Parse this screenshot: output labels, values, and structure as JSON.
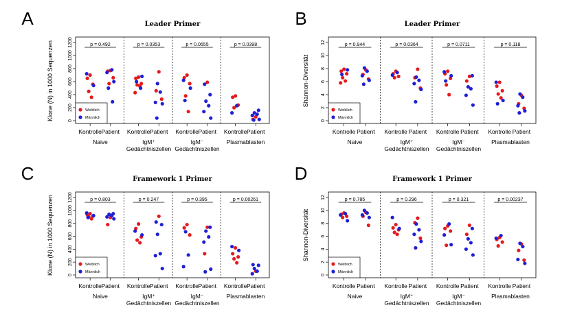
{
  "colors": {
    "female": "#e41a1c",
    "male": "#1f1fd6"
  },
  "category_labels": [
    "Kontrolle",
    "Patient"
  ],
  "group_labels": [
    [
      "Naive"
    ],
    [
      "IgM⁺",
      "Gedächtniszellen"
    ],
    [
      "IgM⁻",
      "Gedächtniszellen"
    ],
    [
      "Plasmablasten"
    ]
  ],
  "legend": {
    "female": "Weiblich",
    "male": "Männlich"
  },
  "chart_data": [
    {
      "type": "scatter",
      "panel": "A",
      "title": "Leader Primer",
      "ylabel": "Klone (N) in 1000 Sequenzen",
      "ylim": [
        0,
        1200
      ],
      "yticks": [
        "0",
        "200",
        "400",
        "600",
        "800",
        "1000",
        "1200"
      ],
      "pvalues": [
        "p = 0.492",
        "p = 0.0353",
        "p = 0.0655",
        "p = 0.0398"
      ],
      "groups": [
        {
          "Kontrolle": {
            "female": [
              700,
              650,
              560,
              450,
              360
            ],
            "male": [
              720,
              540
            ]
          },
          "Patient": {
            "female": [
              770,
              760,
              660,
              570
            ],
            "male": [
              780,
              740,
              600,
              500,
              290
            ]
          }
        },
        {
          "Kontrolle": {
            "female": [
              670,
              650,
              570,
              550,
              530,
              430
            ],
            "male": [
              680,
              600,
              500
            ]
          },
          "Patient": {
            "female": [
              750,
              460,
              330
            ],
            "male": [
              570,
              440,
              280,
              260,
              40
            ]
          }
        },
        {
          "Kontrolle": {
            "female": [
              700,
              660,
              570,
              380,
              140
            ],
            "male": [
              620,
              500,
              310
            ]
          },
          "Patient": {
            "female": [
              590
            ],
            "male": [
              560,
              400,
              300,
              230,
              140,
              40
            ]
          }
        },
        {
          "Kontrolle": {
            "female": [
              380,
              360,
              240,
              200
            ],
            "male": [
              230,
              120
            ]
          },
          "Patient": {
            "female": [
              60,
              20
            ],
            "male": [
              160,
              120,
              100,
              80,
              20,
              10
            ]
          }
        }
      ]
    },
    {
      "type": "scatter",
      "panel": "B",
      "title": "Leader Primer",
      "ylabel": "Shannon-Diversität",
      "ylim": [
        0,
        12
      ],
      "yticks": [
        "0",
        "2",
        "4",
        "6",
        "8",
        "10",
        "12"
      ],
      "pvalues": [
        "p = 0.944",
        "p = 0.0364",
        "p = 0.0711",
        "p = 0.118"
      ],
      "groups": [
        {
          "Kontrolle": {
            "female": [
              7.9,
              7.6,
              7.2,
              6.6,
              6.1,
              5.8
            ],
            "male": [
              7.8,
              7.1
            ]
          },
          "Patient": {
            "female": [
              7.8,
              7.1,
              6.4
            ],
            "male": [
              8.1,
              7.6,
              6.9,
              6.2,
              5.6
            ]
          }
        },
        {
          "Kontrolle": {
            "female": [
              7.6,
              7.2,
              6.8,
              6.6
            ],
            "male": [
              7.4,
              7.0
            ]
          },
          "Patient": {
            "female": [
              7.9,
              6.6,
              5.0
            ],
            "male": [
              6.7,
              6.2,
              5.7,
              4.8,
              2.9
            ]
          }
        },
        {
          "Kontrolle": {
            "female": [
              7.6,
              7.2,
              6.5,
              5.5,
              4.0
            ],
            "male": [
              7.5,
              6.9,
              6.1
            ]
          },
          "Patient": {
            "female": [
              6.8,
              6.1
            ],
            "male": [
              6.9,
              5.2,
              4.9,
              3.9,
              2.4
            ]
          }
        },
        {
          "Kontrolle": {
            "female": [
              5.9,
              5.3,
              4.6,
              4.1,
              3.5
            ],
            "male": [
              5.9,
              3.1,
              2.6
            ]
          },
          "Patient": {
            "female": [
              3.9,
              2.6,
              1.9
            ],
            "male": [
              4.1,
              3.6,
              2.3,
              1.5,
              1.2
            ]
          }
        }
      ]
    },
    {
      "type": "scatter",
      "panel": "C",
      "title": "Framework 1 Primer",
      "ylabel": "Klone (N) in 1000 Sequenzen",
      "ylim": [
        0,
        1200
      ],
      "yticks": [
        "0",
        "200",
        "400",
        "600",
        "800",
        "1000",
        "1200"
      ],
      "pvalues": [
        "p = 0.803",
        "p = 0.247",
        "p = 0.395",
        "p = 0.00261"
      ],
      "groups": [
        {
          "Kontrolle": {
            "female": [
              950,
              930,
              910,
              900,
              870
            ],
            "male": [
              960,
              920,
              890
            ]
          },
          "Patient": {
            "female": [
              890,
              780
            ],
            "male": [
              950,
              940,
              920,
              900,
              870
            ]
          }
        },
        {
          "Kontrolle": {
            "female": [
              790,
              720,
              590,
              540,
              500
            ],
            "male": [
              680,
              620
            ]
          },
          "Patient": {
            "female": [
              910
            ],
            "male": [
              820,
              780,
              630,
              330,
              300,
              100
            ]
          }
        },
        {
          "Kontrolle": {
            "female": [
              780,
              730,
              620
            ],
            "male": [
              670,
              310,
              130
            ]
          },
          "Patient": {
            "female": [
              740,
              330
            ],
            "male": [
              740,
              680,
              590,
              510,
              90,
              50
            ]
          }
        },
        {
          "Kontrolle": {
            "female": [
              420,
              330,
              280,
              250,
              190
            ],
            "male": [
              440,
              380
            ]
          },
          "Patient": {
            "female": [
              60
            ],
            "male": [
              160,
              150,
              100,
              60,
              20
            ]
          }
        }
      ]
    },
    {
      "type": "scatter",
      "panel": "D",
      "title": "Framework 1 Primer",
      "ylabel": "Shannon-Diversität",
      "ylim": [
        0,
        12
      ],
      "yticks": [
        "0",
        "2",
        "4",
        "6",
        "8",
        "10",
        "12"
      ],
      "pvalues": [
        "p = 0.785",
        "p = 0.296",
        "p = 0.321",
        "p = 0.00237"
      ],
      "groups": [
        {
          "Kontrolle": {
            "female": [
              9.6,
              9.4,
              9.1,
              8.9
            ],
            "male": [
              9.5,
              9.3,
              8.4
            ]
          },
          "Patient": {
            "female": [
              9.7,
              9.1,
              7.7
            ],
            "male": [
              10.0,
              9.6,
              9.3,
              8.9
            ]
          }
        },
        {
          "Kontrolle": {
            "female": [
              7.8,
              7.3,
              7.0,
              6.6,
              6.3
            ],
            "male": [
              8.9,
              7.2
            ]
          },
          "Patient": {
            "female": [
              8.8,
              8.1,
              5.7
            ],
            "male": [
              7.9,
              7.0,
              6.3,
              5.2,
              4.2
            ]
          }
        },
        {
          "Kontrolle": {
            "female": [
              7.6,
              7.2,
              6.8,
              4.6
            ],
            "male": [
              7.9,
              6.2,
              4.7
            ]
          },
          "Patient": {
            "female": [
              7.7,
              6.3
            ],
            "male": [
              7.2,
              5.6,
              5.0,
              4.0,
              3.1
            ]
          }
        },
        {
          "Kontrolle": {
            "female": [
              5.8,
              5.5,
              5.1,
              4.5
            ],
            "male": [
              6.1,
              5.7
            ]
          },
          "Patient": {
            "female": [
              4.8,
              3.8,
              2.3
            ],
            "male": [
              4.9,
              4.4,
              2.4,
              1.8
            ]
          }
        }
      ]
    }
  ]
}
